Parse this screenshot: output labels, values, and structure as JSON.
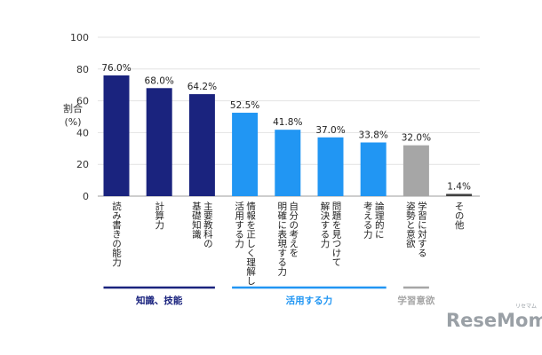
{
  "chart_data": {
    "type": "bar",
    "ylabel_lines": [
      "割合",
      "(%)"
    ],
    "ylim": [
      0,
      100
    ],
    "yticks": [
      0,
      20,
      40,
      60,
      80,
      100
    ],
    "grid": true,
    "categories": [
      [
        "読み書きの能力"
      ],
      [
        "計算力"
      ],
      [
        "主要教科の",
        "基礎知識"
      ],
      [
        "情報を正しく理解し",
        "活用する力"
      ],
      [
        "自分の考えを",
        "明確に表現する力"
      ],
      [
        "問題を見つけて",
        "解決する力"
      ],
      [
        "論理的に",
        "考える力"
      ],
      [
        "学習に対する",
        "姿勢と意欲"
      ],
      [
        "その他"
      ]
    ],
    "values": [
      76.0,
      68.0,
      64.2,
      52.5,
      41.8,
      37.0,
      33.8,
      32.0,
      1.4
    ],
    "value_labels": [
      "76.0%",
      "68.0%",
      "64.2%",
      "52.5%",
      "41.8%",
      "37.0%",
      "33.8%",
      "32.0%",
      "1.4%"
    ],
    "bar_colors": [
      "#1a237e",
      "#1a237e",
      "#1a237e",
      "#2196f3",
      "#2196f3",
      "#2196f3",
      "#2196f3",
      "#a6a6a6",
      "#404040"
    ],
    "groups": [
      {
        "label": "知識、技能",
        "color": "#1a237e",
        "from": 0,
        "to": 2
      },
      {
        "label": "活用する力",
        "color": "#2196f3",
        "from": 3,
        "to": 6
      },
      {
        "label": "学習意欲",
        "color": "#a6a6a6",
        "from": 7,
        "to": 7
      }
    ]
  },
  "watermark": {
    "text": "ReseMom",
    "ruby": "リセマム"
  }
}
